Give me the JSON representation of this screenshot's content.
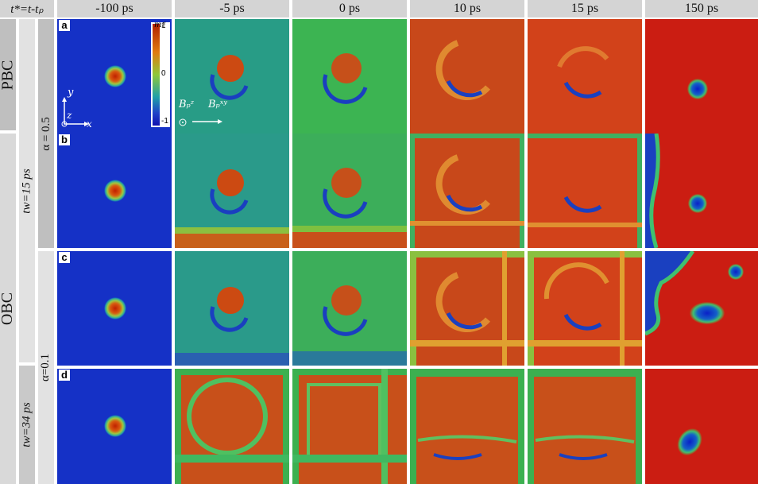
{
  "header": {
    "corner": "t*=t-tₚ",
    "times": [
      "-100 ps",
      "-5 ps",
      "0 ps",
      "10 ps",
      "15 ps",
      "150 ps"
    ]
  },
  "rows": {
    "boundary": [
      "PBC",
      "OBC"
    ],
    "tw": [
      "tw=15 ps",
      "tw=34 ps"
    ],
    "alpha": [
      "α = 0.5",
      "α=0.1"
    ],
    "labels": [
      "a",
      "b",
      "c",
      "d"
    ]
  },
  "colorbar": {
    "title": "mᵢᶻ",
    "ticks": [
      "1",
      "0",
      "-1"
    ],
    "colors": [
      "#b02000",
      "#e07a10",
      "#8fc83a",
      "#20a0a8",
      "#1010b0"
    ]
  },
  "axes_annotation": {
    "y": "y",
    "z": "z",
    "x": "x"
  },
  "field_annotation": {
    "bz": "Bₚᶻ",
    "bxy": "Bₚˣʸ"
  }
}
